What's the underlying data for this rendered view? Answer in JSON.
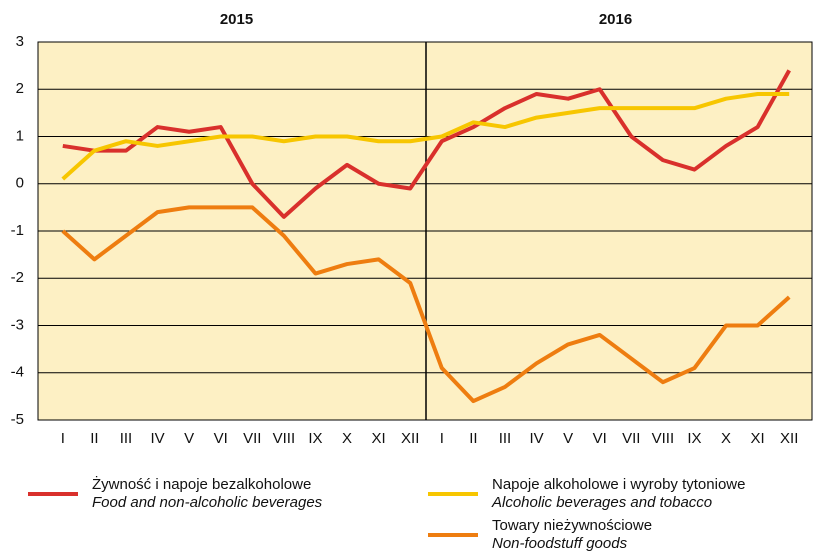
{
  "chart_data": {
    "type": "line",
    "x_groups": [
      "2015",
      "2016"
    ],
    "categories": [
      "I",
      "II",
      "III",
      "IV",
      "V",
      "VI",
      "VII",
      "VIII",
      "IX",
      "X",
      "XI",
      "XII",
      "I",
      "II",
      "III",
      "IV",
      "V",
      "VI",
      "VII",
      "VIII",
      "IX",
      "X",
      "XI",
      "XII"
    ],
    "series": [
      {
        "name": "Żywność i napoje bezalkoholowe",
        "name_en": "Food and non-alcoholic beverages",
        "color": "#d9302c",
        "values": [
          0.8,
          0.7,
          0.7,
          1.2,
          1.1,
          1.2,
          0.0,
          -0.7,
          -0.1,
          0.4,
          0.0,
          -0.1,
          0.9,
          1.2,
          1.6,
          1.9,
          1.8,
          2.0,
          1.0,
          0.5,
          0.3,
          0.8,
          1.2,
          2.4
        ]
      },
      {
        "name": "Napoje alkoholowe i wyroby tytoniowe",
        "name_en": "Alcoholic beverages and tobacco",
        "color": "#f7c600",
        "values": [
          0.1,
          0.7,
          0.9,
          0.8,
          0.9,
          1.0,
          1.0,
          0.9,
          1.0,
          1.0,
          0.9,
          0.9,
          1.0,
          1.3,
          1.2,
          1.4,
          1.5,
          1.6,
          1.6,
          1.6,
          1.6,
          1.8,
          1.9,
          1.9
        ]
      },
      {
        "name": "Towary nieżywnościowe",
        "name_en": "Non-foodstuff goods",
        "color": "#ee7d10",
        "values": [
          -1.0,
          -1.6,
          -1.1,
          -0.6,
          -0.5,
          -0.5,
          -0.5,
          -1.1,
          -1.9,
          -1.7,
          -1.6,
          -2.1,
          -3.9,
          -4.6,
          -4.3,
          -3.8,
          -3.4,
          -3.2,
          -3.7,
          -4.2,
          -3.9,
          -3.0,
          -3.0,
          -2.4
        ]
      }
    ],
    "ylim": [
      -5,
      3
    ],
    "yticks": [
      -5,
      -4,
      -3,
      -2,
      -1,
      0,
      1,
      2,
      3
    ],
    "grid": true,
    "background": "#fdf0c4"
  }
}
